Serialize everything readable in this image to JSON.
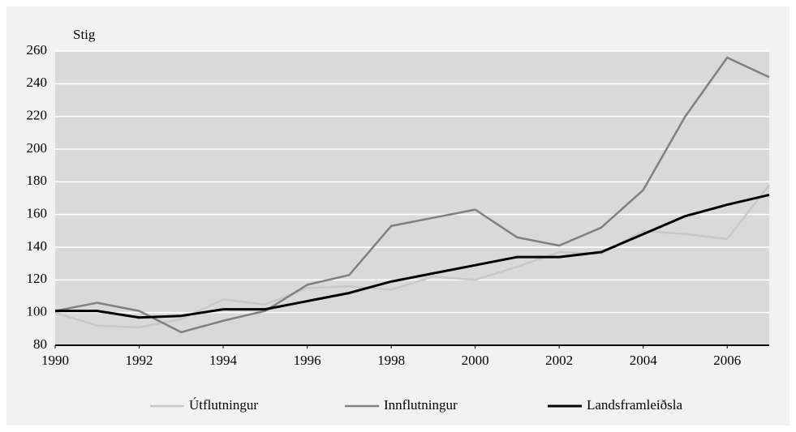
{
  "chart_data": {
    "type": "line",
    "y_label": "Stig",
    "x": [
      1990,
      1991,
      1992,
      1993,
      1994,
      1995,
      1996,
      1997,
      1998,
      1999,
      2000,
      2001,
      2002,
      2003,
      2004,
      2005,
      2006,
      2007
    ],
    "series": [
      {
        "name": "Útflutningur",
        "color": "#c8c8c8",
        "values": [
          100,
          92,
          91,
          96,
          108,
          105,
          115,
          116,
          114,
          122,
          120,
          128,
          137,
          136,
          150,
          148,
          145,
          178
        ]
      },
      {
        "name": "Innflutningur",
        "color": "#808080",
        "values": [
          101,
          106,
          101,
          88,
          95,
          101,
          117,
          123,
          153,
          158,
          163,
          146,
          141,
          152,
          175,
          220,
          256,
          244
        ]
      },
      {
        "name": "Landsframleiðsla",
        "color": "#000000",
        "values": [
          101,
          101,
          97,
          98,
          102,
          102,
          107,
          112,
          119,
          124,
          129,
          134,
          134,
          137,
          148,
          159,
          166,
          172
        ]
      }
    ],
    "xlim": [
      1990,
      2007
    ],
    "xticks": [
      1990,
      1992,
      1994,
      1996,
      1998,
      2000,
      2002,
      2004,
      2006
    ],
    "ylim": [
      80,
      260
    ],
    "yticks": [
      80,
      100,
      120,
      140,
      160,
      180,
      200,
      220,
      240,
      260
    ],
    "grid": true,
    "legend": "bottom"
  }
}
